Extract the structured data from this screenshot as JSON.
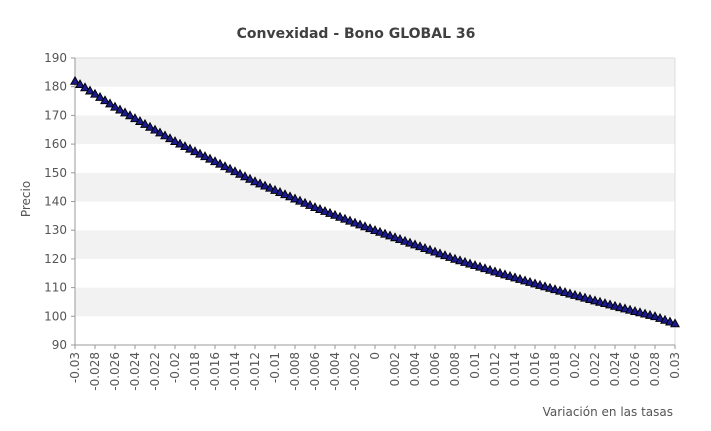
{
  "chart_data": {
    "type": "line",
    "title": "Convexidad - Bono GLOBAL 36",
    "xlabel": "Variación en las tasas",
    "ylabel": "Precio",
    "xlim": [
      -0.03,
      0.03
    ],
    "ylim": [
      90,
      190
    ],
    "x_ticks": [
      -0.03,
      -0.028,
      -0.026,
      -0.024,
      -0.022,
      -0.02,
      -0.018,
      -0.016,
      -0.014,
      -0.012,
      -0.01,
      -0.008,
      -0.006,
      -0.004,
      -0.002,
      0,
      0.002,
      0.004,
      0.006,
      0.008,
      0.01,
      0.012,
      0.014,
      0.016,
      0.018,
      0.02,
      0.022,
      0.024,
      0.026,
      0.028,
      0.03
    ],
    "x_tick_labels": [
      "-0.03",
      "-0.028",
      "-0.026",
      "-0.024",
      "-0.022",
      "-0.02",
      "-0.018",
      "-0.016",
      "-0.014",
      "-0.012",
      "-0.01",
      "-0.008",
      "-0.006",
      "-0.004",
      "-0.002",
      "0",
      "0.002",
      "0.004",
      "0.006",
      "0.008",
      "0.01",
      "0.012",
      "0.014",
      "0.016",
      "0.018",
      "0.02",
      "0.022",
      "0.024",
      "0.026",
      "0.028",
      "0.03"
    ],
    "y_ticks": [
      90,
      100,
      110,
      120,
      130,
      140,
      150,
      160,
      170,
      180,
      190
    ],
    "y_tick_labels": [
      "90",
      "100",
      "110",
      "120",
      "130",
      "140",
      "150",
      "160",
      "170",
      "180",
      "190"
    ],
    "grid": "horizontal bands",
    "legend": "none",
    "series": [
      {
        "marker": "triangle",
        "color": "#1a1a8c",
        "x": [
          -0.03,
          -0.028,
          -0.026,
          -0.024,
          -0.022,
          -0.02,
          -0.018,
          -0.016,
          -0.014,
          -0.012,
          -0.01,
          -0.008,
          -0.006,
          -0.004,
          -0.002,
          0,
          0.002,
          0.004,
          0.006,
          0.008,
          0.01,
          0.012,
          0.014,
          0.016,
          0.018,
          0.02,
          0.022,
          0.024,
          0.026,
          0.028,
          0.03
        ],
        "y": [
          182,
          177.5,
          173,
          169,
          165,
          161,
          157.5,
          154,
          150.5,
          147,
          144,
          141,
          138,
          135.3,
          132.6,
          130,
          127.5,
          125,
          122.5,
          120,
          117.8,
          115.6,
          113.5,
          111.4,
          109.4,
          107.4,
          105.5,
          103.6,
          101.8,
          100,
          97.5
        ]
      }
    ]
  }
}
